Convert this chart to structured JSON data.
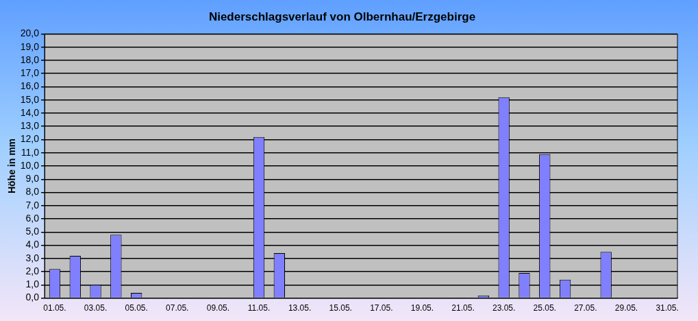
{
  "chart_data": {
    "type": "bar",
    "title": "Niederschlagsverlauf von Olbernhau/Erzgebirge",
    "ylabel": "Höhe in mm",
    "categories": [
      "01.05.",
      null,
      "03.05.",
      null,
      "05.05.",
      null,
      "07.05.",
      null,
      "09.05.",
      null,
      "11.05.",
      null,
      "13.05.",
      null,
      "15.05.",
      null,
      "17.05.",
      null,
      "19.05.",
      null,
      "21.05.",
      null,
      "23.05.",
      null,
      "25.05.",
      null,
      "27.05.",
      null,
      "29.05.",
      null,
      "31.05."
    ],
    "values": [
      2.2,
      3.2,
      1.0,
      4.8,
      0.4,
      0,
      0,
      0,
      0,
      0,
      12.2,
      3.4,
      0,
      0,
      0,
      0,
      0,
      0,
      0,
      0,
      0,
      0.2,
      15.2,
      1.9,
      10.9,
      1.4,
      0,
      3.5,
      0,
      0,
      0
    ],
    "color": "#8080ff",
    "ylim": [
      0,
      20
    ],
    "yticks": [
      {
        "value": 0,
        "label": "0,0"
      },
      {
        "value": 1,
        "label": "1,0"
      },
      {
        "value": 2,
        "label": "2,0"
      },
      {
        "value": 3,
        "label": "3,0"
      },
      {
        "value": 4,
        "label": "4,0"
      },
      {
        "value": 5,
        "label": "5,0"
      },
      {
        "value": 6,
        "label": "6,0"
      },
      {
        "value": 7,
        "label": "7,0"
      },
      {
        "value": 8,
        "label": "8,0"
      },
      {
        "value": 9,
        "label": "9,0"
      },
      {
        "value": 10,
        "label": "10,0"
      },
      {
        "value": 11,
        "label": "11,0"
      },
      {
        "value": 12,
        "label": "12,0"
      },
      {
        "value": 13,
        "label": "13,0"
      },
      {
        "value": 14,
        "label": "14,0"
      },
      {
        "value": 15,
        "label": "15,0"
      },
      {
        "value": 16,
        "label": "16,0"
      },
      {
        "value": 17,
        "label": "17,0"
      },
      {
        "value": 18,
        "label": "18,0"
      },
      {
        "value": 19,
        "label": "19,0"
      },
      {
        "value": 20,
        "label": "20,0"
      }
    ],
    "grid": "y",
    "legend": false
  }
}
